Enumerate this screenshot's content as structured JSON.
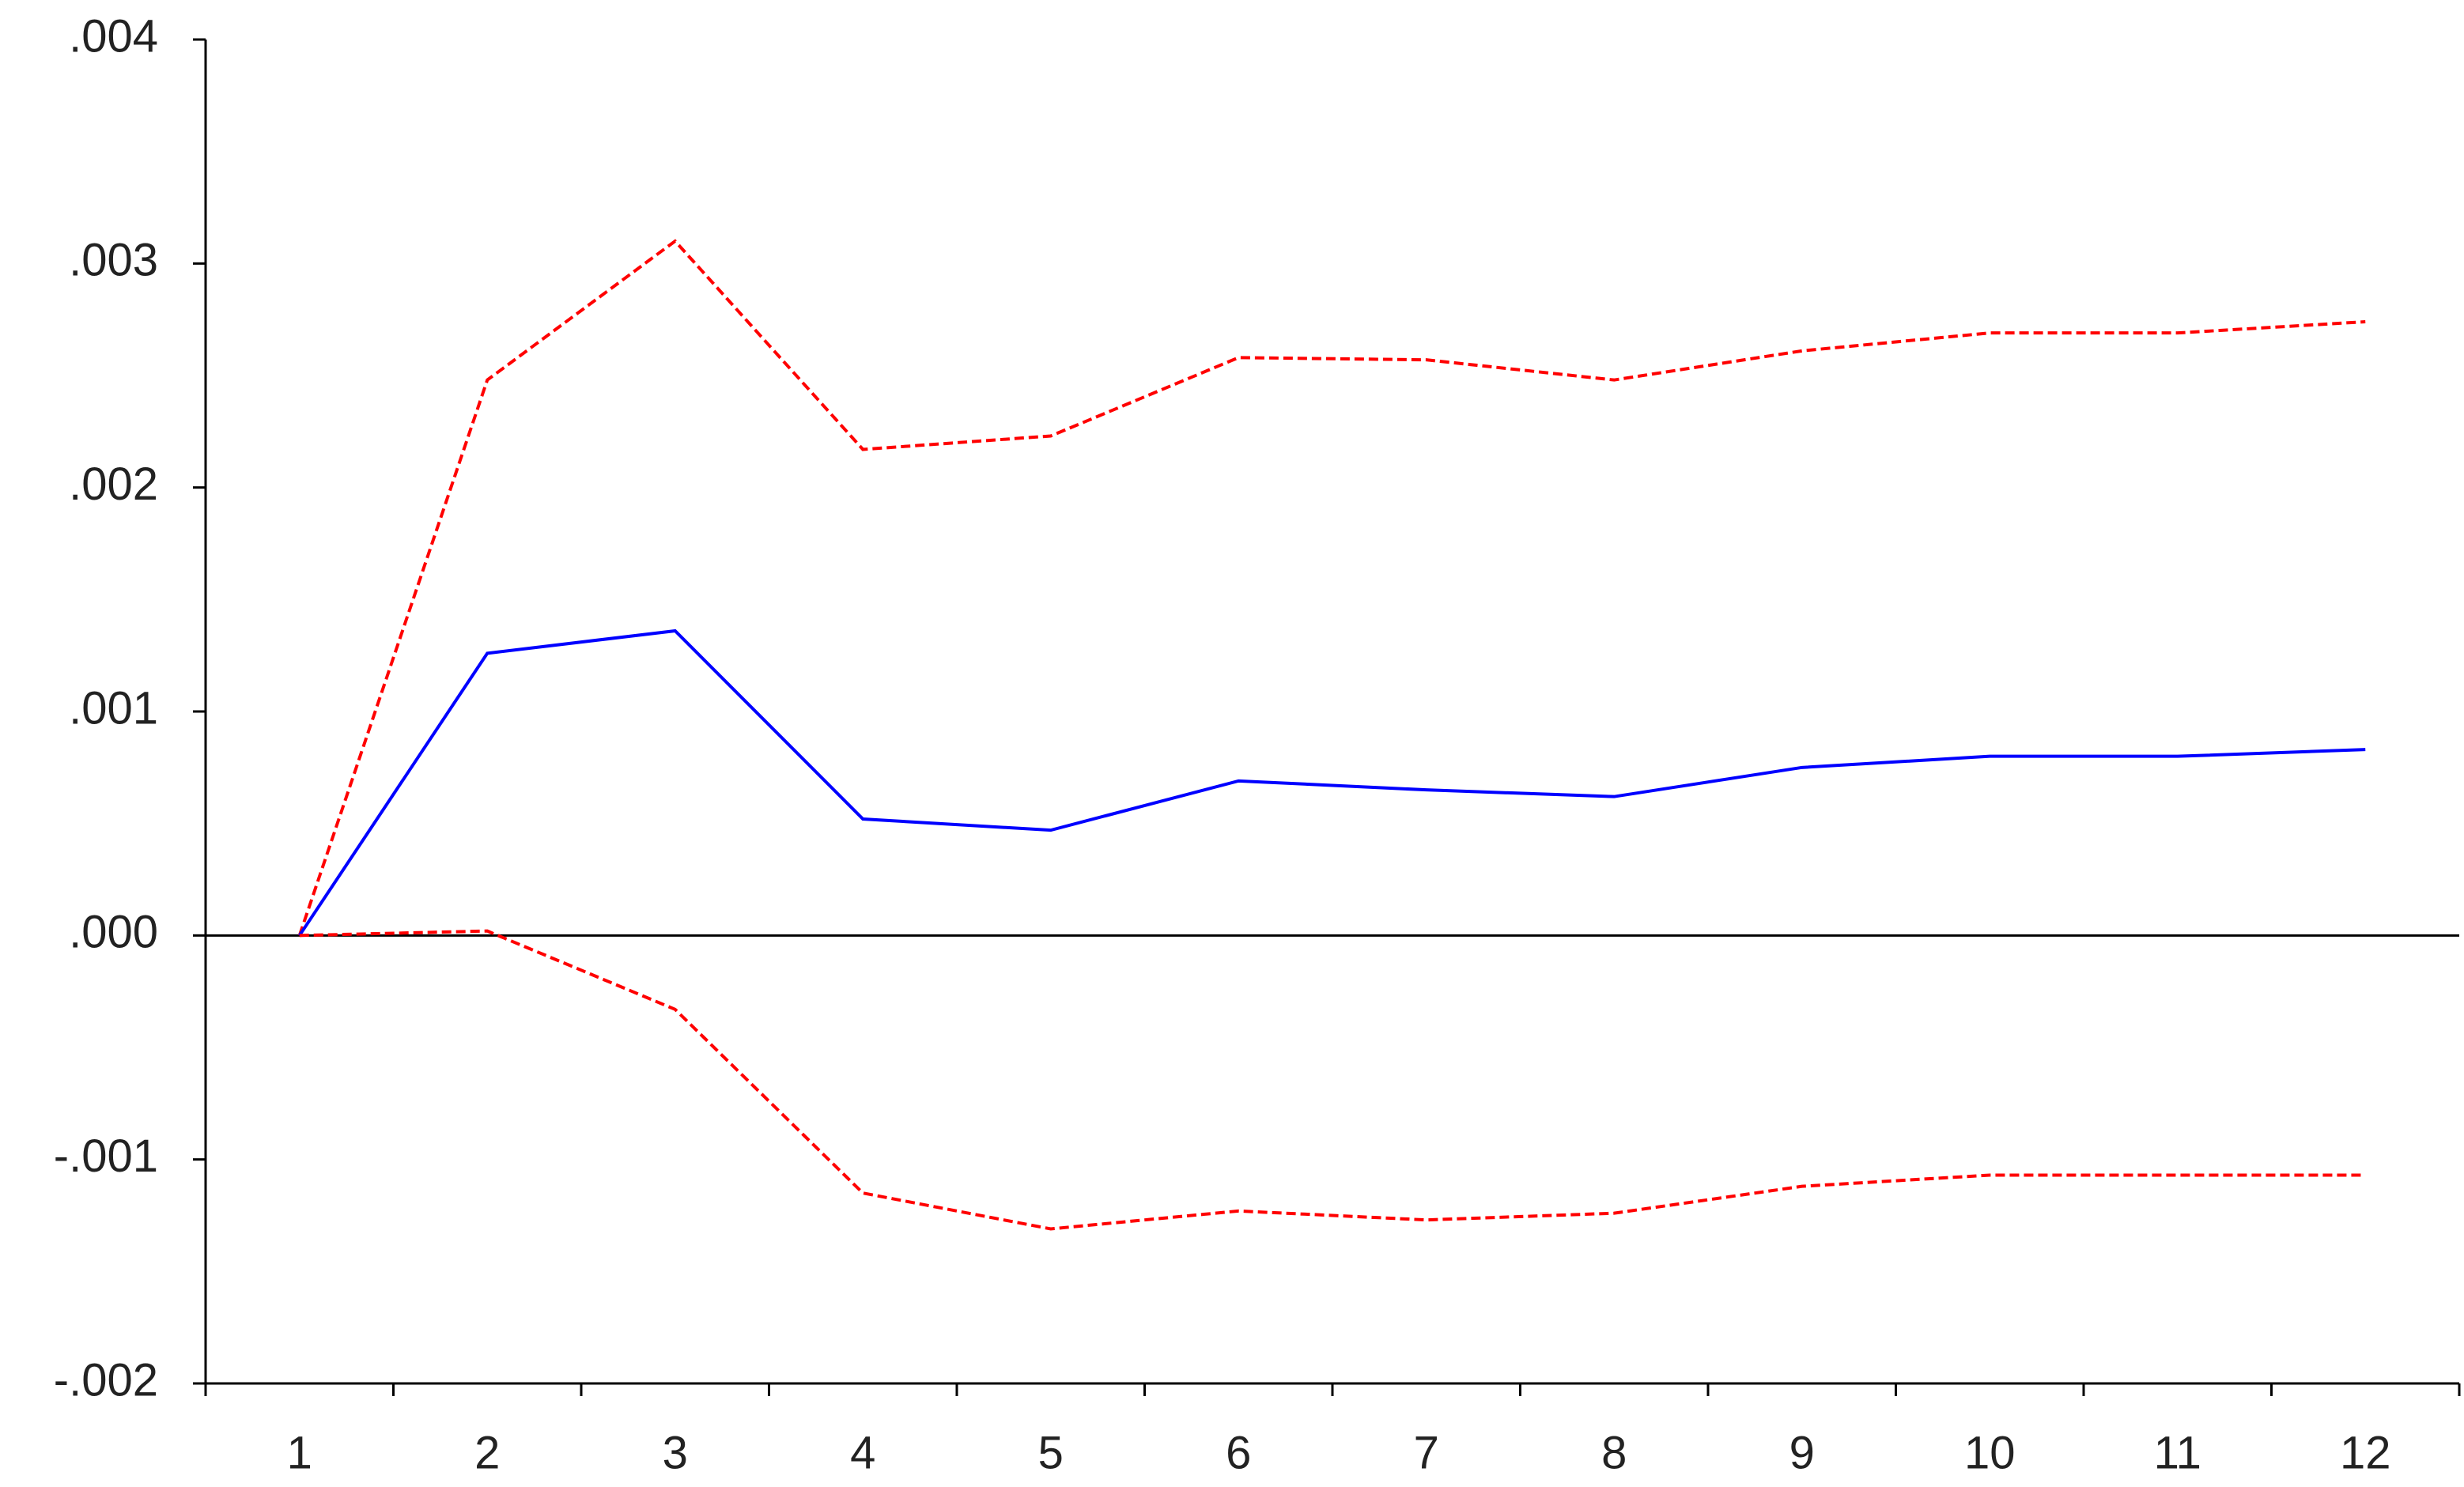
{
  "chart_data": {
    "type": "line",
    "categories": [
      "1",
      "2",
      "3",
      "4",
      "5",
      "6",
      "7",
      "8",
      "9",
      "10",
      "11",
      "12"
    ],
    "series": [
      {
        "color": "#ff0000",
        "style": "dashed",
        "values": [
          0.0,
          0.00248,
          0.0031,
          0.00217,
          0.00223,
          0.00258,
          0.00257,
          0.00248,
          0.00261,
          0.00269,
          0.00269,
          0.00274
        ]
      },
      {
        "color": "#0000ff",
        "style": "solid",
        "values": [
          0.0,
          0.00126,
          0.00136,
          0.00052,
          0.00047,
          0.00069,
          0.00065,
          0.00062,
          0.00075,
          0.0008,
          0.0008,
          0.00083
        ]
      },
      {
        "color": "#ff0000",
        "style": "dashed",
        "values": [
          0.0,
          2e-05,
          -0.00033,
          -0.00115,
          -0.00131,
          -0.00123,
          -0.00127,
          -0.00124,
          -0.00112,
          -0.00107,
          -0.00107,
          -0.00107
        ]
      }
    ],
    "ylim": [
      -0.002,
      0.004
    ],
    "yticks": [
      {
        "value": -0.002,
        "label": "-.002"
      },
      {
        "value": -0.001,
        "label": "-.001"
      },
      {
        "value": 0,
        "label": ".000"
      },
      {
        "value": 0.001,
        "label": ".001"
      },
      {
        "value": 0.002,
        "label": ".002"
      },
      {
        "value": 0.003,
        "label": ".003"
      },
      {
        "value": 0.004,
        "label": ".004"
      }
    ],
    "zero_line": true,
    "grid": false
  }
}
